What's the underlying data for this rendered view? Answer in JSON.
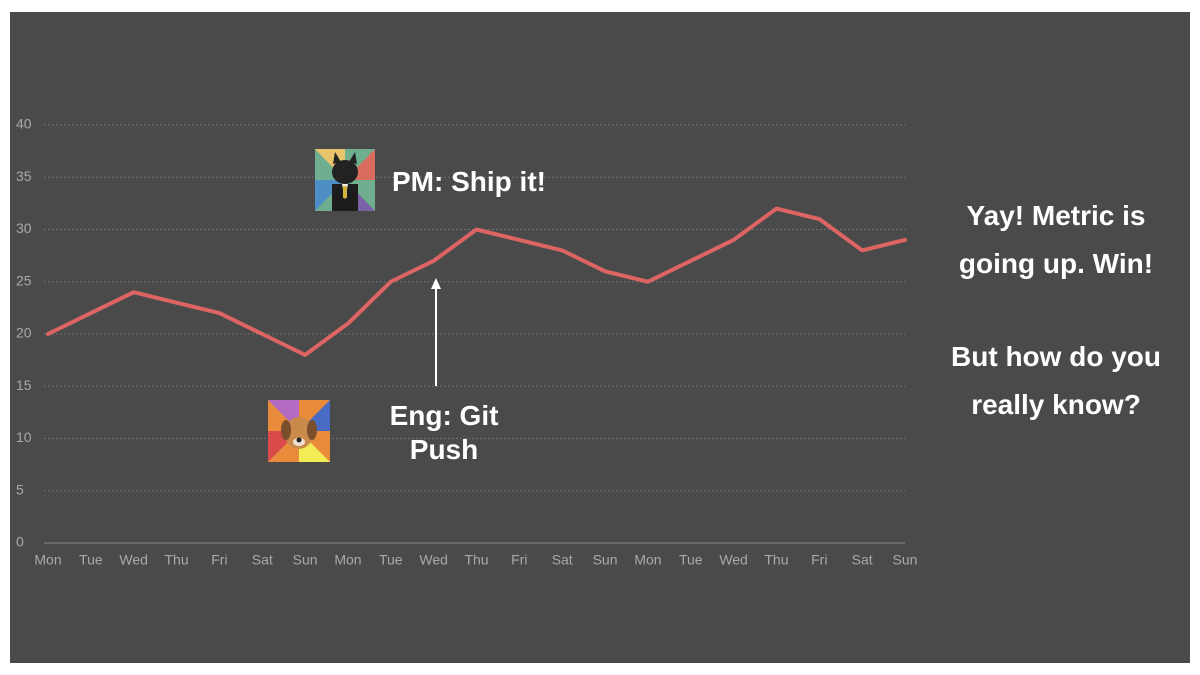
{
  "chart_data": {
    "type": "line",
    "categories": [
      "Mon",
      "Tue",
      "Wed",
      "Thu",
      "Fri",
      "Sat",
      "Sun",
      "Mon",
      "Tue",
      "Wed",
      "Thu",
      "Fri",
      "Sat",
      "Sun",
      "Mon",
      "Tue",
      "Wed",
      "Thu",
      "Fri",
      "Sat",
      "Sun"
    ],
    "values": [
      20,
      22,
      24,
      23,
      22,
      20,
      18,
      21,
      25,
      27,
      30,
      29,
      28,
      26,
      25,
      27,
      29,
      32,
      31,
      28,
      29
    ],
    "color": "#dc6563",
    "ylim": [
      0,
      40
    ],
    "yticks": [
      0,
      5,
      10,
      15,
      20,
      25,
      30,
      35,
      40
    ],
    "grid": true,
    "annotations": [
      "PM: Ship it!",
      "Eng: Git Push"
    ],
    "notes": [
      "Yay! Metric is going up. Win!",
      "But how do you really know?"
    ]
  }
}
